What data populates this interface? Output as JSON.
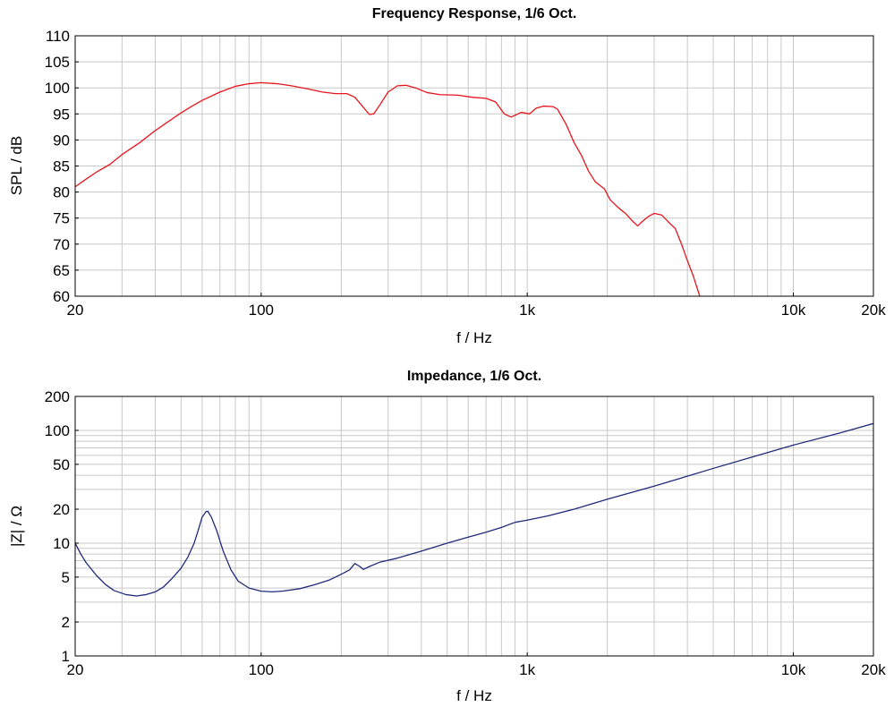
{
  "chart_data": [
    {
      "type": "line",
      "title": "Frequency Response, 1/6 Oct.",
      "xlabel": "f / Hz",
      "ylabel": "SPL / dB",
      "xscale": "log",
      "xlim": [
        20,
        20000
      ],
      "ylim": [
        60,
        110
      ],
      "grid": true,
      "x_ticks": [
        {
          "value": 20,
          "label": "20"
        },
        {
          "value": 100,
          "label": "100"
        },
        {
          "value": 1000,
          "label": "1k"
        },
        {
          "value": 10000,
          "label": "10k"
        },
        {
          "value": 20000,
          "label": "20k"
        }
      ],
      "y_ticks": [
        {
          "value": 60,
          "label": "60"
        },
        {
          "value": 65,
          "label": "65"
        },
        {
          "value": 70,
          "label": "70"
        },
        {
          "value": 75,
          "label": "75"
        },
        {
          "value": 80,
          "label": "80"
        },
        {
          "value": 85,
          "label": "85"
        },
        {
          "value": 90,
          "label": "90"
        },
        {
          "value": 95,
          "label": "95"
        },
        {
          "value": 100,
          "label": "100"
        },
        {
          "value": 105,
          "label": "105"
        },
        {
          "value": 110,
          "label": "110"
        }
      ],
      "series": [
        {
          "color": "#e8141c",
          "points": [
            [
              20,
              81.0
            ],
            [
              22,
              82.5
            ],
            [
              24,
              83.8
            ],
            [
              27,
              85.3
            ],
            [
              30,
              87.2
            ],
            [
              35,
              89.5
            ],
            [
              40,
              91.8
            ],
            [
              45,
              93.6
            ],
            [
              50,
              95.2
            ],
            [
              55,
              96.5
            ],
            [
              60,
              97.6
            ],
            [
              70,
              99.2
            ],
            [
              80,
              100.3
            ],
            [
              90,
              100.8
            ],
            [
              100,
              101.0
            ],
            [
              115,
              100.8
            ],
            [
              130,
              100.4
            ],
            [
              150,
              99.8
            ],
            [
              170,
              99.2
            ],
            [
              190,
              98.9
            ],
            [
              210,
              98.9
            ],
            [
              225,
              98.2
            ],
            [
              240,
              96.5
            ],
            [
              255,
              94.9
            ],
            [
              265,
              95.0
            ],
            [
              280,
              96.8
            ],
            [
              300,
              99.2
            ],
            [
              325,
              100.4
            ],
            [
              350,
              100.5
            ],
            [
              380,
              100.0
            ],
            [
              420,
              99.1
            ],
            [
              470,
              98.7
            ],
            [
              550,
              98.6
            ],
            [
              620,
              98.2
            ],
            [
              700,
              98.0
            ],
            [
              760,
              97.3
            ],
            [
              820,
              95.0
            ],
            [
              870,
              94.4
            ],
            [
              950,
              95.3
            ],
            [
              1020,
              95.0
            ],
            [
              1080,
              96.1
            ],
            [
              1150,
              96.5
            ],
            [
              1250,
              96.4
            ],
            [
              1300,
              95.9
            ],
            [
              1400,
              93.0
            ],
            [
              1500,
              89.5
            ],
            [
              1600,
              87.0
            ],
            [
              1700,
              84.0
            ],
            [
              1800,
              82.0
            ],
            [
              1950,
              80.6
            ],
            [
              2050,
              78.5
            ],
            [
              2200,
              77.0
            ],
            [
              2350,
              75.8
            ],
            [
              2500,
              74.3
            ],
            [
              2600,
              73.5
            ],
            [
              2700,
              74.3
            ],
            [
              2850,
              75.3
            ],
            [
              3000,
              75.9
            ],
            [
              3200,
              75.6
            ],
            [
              3400,
              74.2
            ],
            [
              3600,
              73.0
            ],
            [
              3800,
              70.0
            ],
            [
              4000,
              66.8
            ],
            [
              4200,
              64.0
            ],
            [
              4450,
              60.0
            ]
          ]
        }
      ]
    },
    {
      "type": "line",
      "title": "Impedance, 1/6 Oct.",
      "xlabel": "f / Hz",
      "ylabel": "|Z| / Ω",
      "xscale": "log",
      "yscale": "log",
      "xlim": [
        20,
        20000
      ],
      "ylim": [
        1,
        200
      ],
      "grid": true,
      "x_ticks": [
        {
          "value": 20,
          "label": "20"
        },
        {
          "value": 100,
          "label": "100"
        },
        {
          "value": 1000,
          "label": "1k"
        },
        {
          "value": 10000,
          "label": "10k"
        },
        {
          "value": 20000,
          "label": "20k"
        }
      ],
      "y_ticks": [
        {
          "value": 1,
          "label": "1"
        },
        {
          "value": 2,
          "label": "2"
        },
        {
          "value": 5,
          "label": "5"
        },
        {
          "value": 10,
          "label": "10"
        },
        {
          "value": 20,
          "label": "20"
        },
        {
          "value": 50,
          "label": "50"
        },
        {
          "value": 100,
          "label": "100"
        },
        {
          "value": 200,
          "label": "200"
        }
      ],
      "series": [
        {
          "color": "#1f2a7a",
          "points": [
            [
              20,
              10.0
            ],
            [
              21,
              8.0
            ],
            [
              22,
              6.7
            ],
            [
              24,
              5.2
            ],
            [
              26,
              4.3
            ],
            [
              28,
              3.8
            ],
            [
              31,
              3.5
            ],
            [
              34,
              3.4
            ],
            [
              37,
              3.5
            ],
            [
              40,
              3.7
            ],
            [
              43,
              4.1
            ],
            [
              46,
              4.8
            ],
            [
              50,
              6.0
            ],
            [
              53,
              7.5
            ],
            [
              56,
              10.0
            ],
            [
              58,
              13.0
            ],
            [
              60,
              17.0
            ],
            [
              62,
              19.0
            ],
            [
              63,
              19.2
            ],
            [
              65,
              17.0
            ],
            [
              68,
              13.0
            ],
            [
              72,
              8.5
            ],
            [
              77,
              5.8
            ],
            [
              82,
              4.6
            ],
            [
              90,
              4.0
            ],
            [
              100,
              3.75
            ],
            [
              110,
              3.7
            ],
            [
              120,
              3.75
            ],
            [
              140,
              3.95
            ],
            [
              160,
              4.3
            ],
            [
              180,
              4.7
            ],
            [
              200,
              5.3
            ],
            [
              215,
              5.8
            ],
            [
              225,
              6.6
            ],
            [
              235,
              6.2
            ],
            [
              242,
              5.85
            ],
            [
              255,
              6.2
            ],
            [
              280,
              6.8
            ],
            [
              320,
              7.3
            ],
            [
              400,
              8.5
            ],
            [
              500,
              10.0
            ],
            [
              600,
              11.3
            ],
            [
              700,
              12.5
            ],
            [
              800,
              13.8
            ],
            [
              900,
              15.3
            ],
            [
              1000,
              16.0
            ],
            [
              1200,
              17.5
            ],
            [
              1500,
              20.0
            ],
            [
              2000,
              24.5
            ],
            [
              3000,
              32.0
            ],
            [
              5000,
              46.0
            ],
            [
              7000,
              58.0
            ],
            [
              10000,
              74.0
            ],
            [
              15000,
              95.0
            ],
            [
              20000,
              115.0
            ]
          ]
        }
      ]
    }
  ]
}
